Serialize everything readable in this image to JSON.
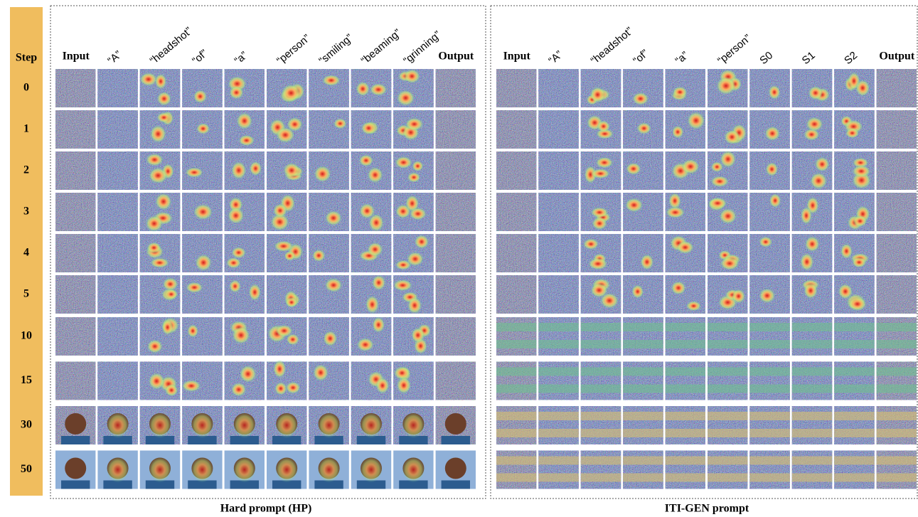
{
  "step_label": "Step",
  "steps": [
    "0",
    "1",
    "2",
    "3",
    "4",
    "5",
    "10",
    "15",
    "30",
    "50"
  ],
  "panels": [
    {
      "columns": [
        "Input",
        "“A”",
        "“headshot”",
        "“of”",
        "“a”",
        "“person”",
        "“smiling”",
        "“beaming”",
        "“grinning”",
        "Output"
      ],
      "caption": "Hard prompt (HP)"
    },
    {
      "columns": [
        "Input",
        "“A”",
        "“headshot”",
        "“of”",
        "“a”",
        "“person”",
        "S0",
        "S1",
        "S2",
        "Output"
      ],
      "caption": "ITI-GEN prompt"
    }
  ]
}
